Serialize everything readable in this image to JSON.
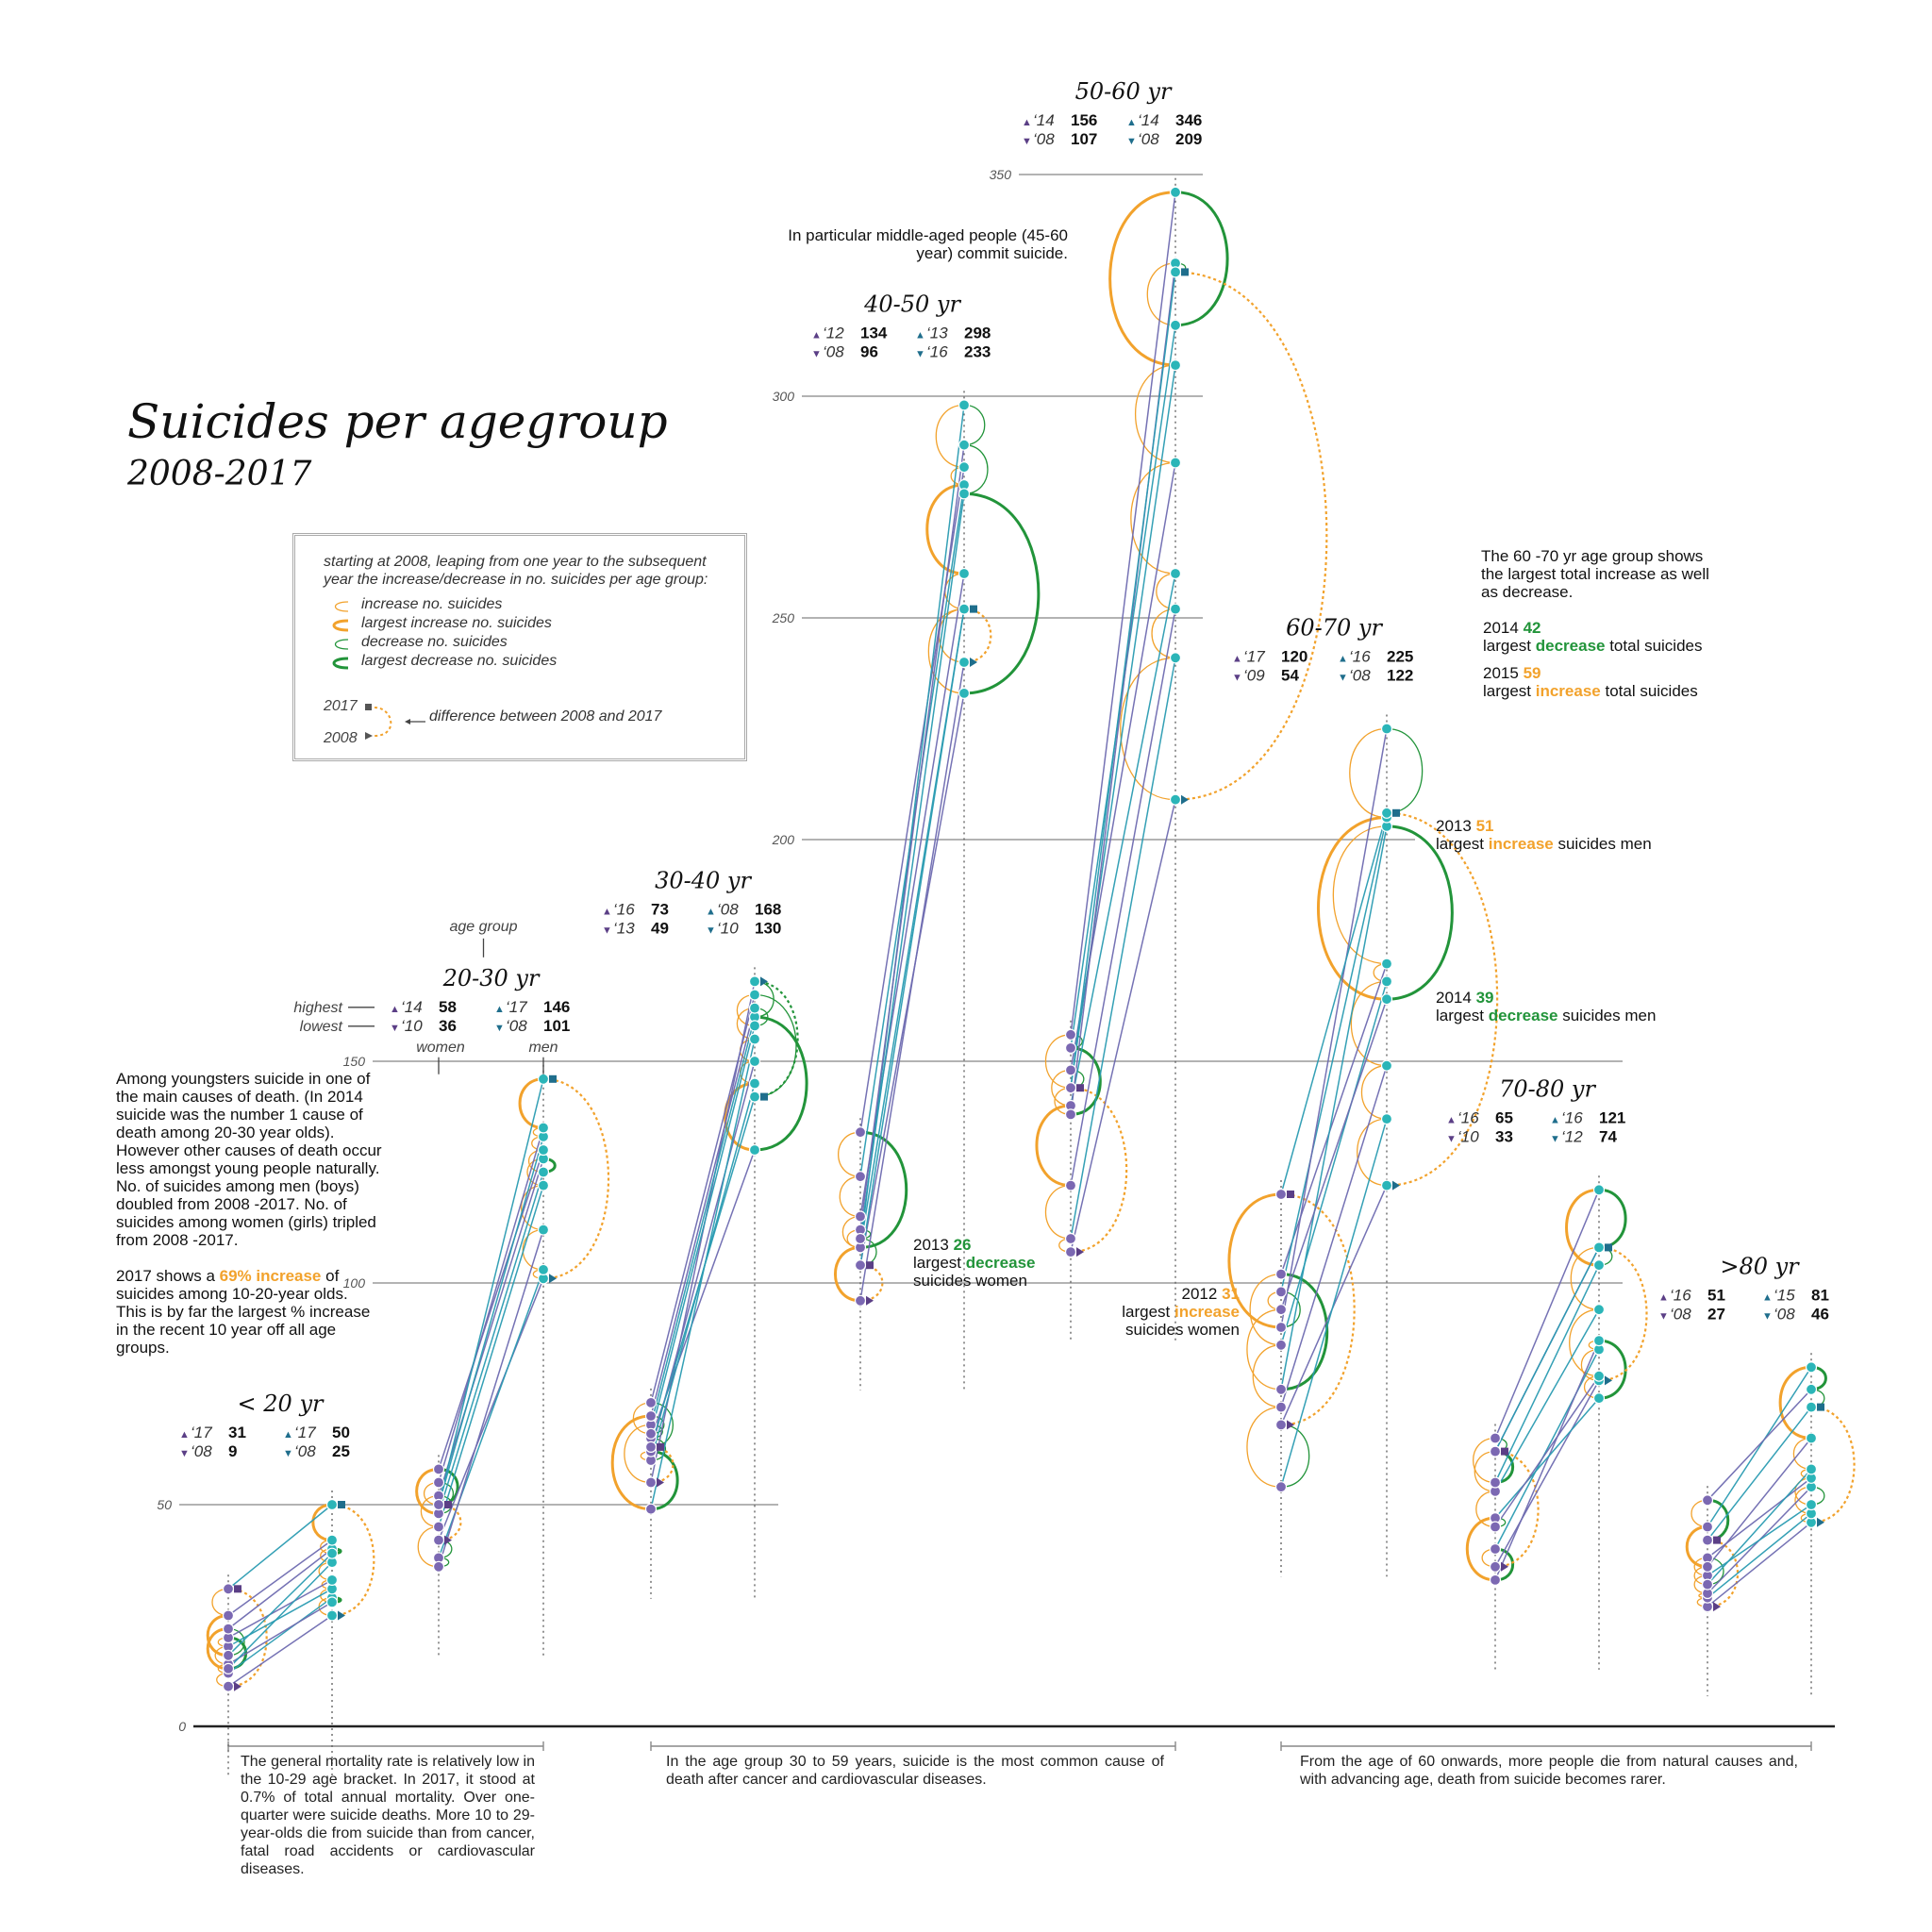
{
  "title": "Suicides per agegroup",
  "subtitle": "2008-2017",
  "legend": {
    "intro": "starting at 2008, leaping from one year to the subsequent year the increase/decrease in no. suicides per age group:",
    "items": [
      "increase no. suicides",
      "largest increase no. suicides",
      "decrease no. suicides",
      "largest decrease no. suicides"
    ],
    "year_2017": "2017",
    "year_2008": "2008",
    "difference": "difference between 2008 and 2017"
  },
  "colors": {
    "women": "#7b68b2",
    "men": "#2bb5b8",
    "men_dark": "#1f6e8c",
    "women_dark": "#5b3f86",
    "increase": "#f2a22c",
    "decrease": "#22943a",
    "axis": "#888888",
    "women_line": "#6e6bb0",
    "men_line": "#2a9bb2"
  },
  "helper": {
    "age_group": "age group",
    "highest": "highest",
    "lowest": "lowest",
    "women": "women",
    "men": "men"
  },
  "notes": {
    "middle_aged": "In particular middle-aged people (45-60 year) commit suicide.",
    "youngsters_1": "Among youngsters suicide in one of the main causes of death. (In 2014 suicide was the number 1 cause of death among 20-30 year olds). However other causes of death occur less amongst young people naturally. No. of suicides among men (boys) doubled from 2008 -2017. No. of suicides among women (girls) tripled from 2008 -2017.",
    "youngsters_2a": "2017 shows a ",
    "youngsters_2b": "69% increase",
    "youngsters_2c": " of suicides among 10-20-year olds. This is by far the largest % increase in the recent 10 year off all age groups.",
    "sixty_seventy": "The 60 -70 yr age group shows the largest total increase as well as decrease.",
    "ann_2014_total": {
      "year": "2014",
      "value": "42",
      "pre": "largest ",
      "word": "decrease",
      "post": " total suicides"
    },
    "ann_2015_total": {
      "year": "2015",
      "value": "59",
      "pre": "largest ",
      "word": "increase",
      "post": " total suicides"
    },
    "ann_2013_men": {
      "year": "2013",
      "value": "51",
      "pre": "largest ",
      "word": "increase",
      "post": " suicides men"
    },
    "ann_2014_men": {
      "year": "2014",
      "value": "39",
      "pre": "largest ",
      "word": "decrease",
      "post": " suicides men"
    },
    "ann_2013_women": {
      "year": "2013",
      "value": "26",
      "pre": "largest ",
      "word": "decrease",
      "post": "suicides women"
    },
    "ann_2012_women": {
      "year": "2012",
      "value": "31",
      "pre": "largest ",
      "word": "increase",
      "post": "suicides women"
    }
  },
  "footnotes": [
    "The general mortality rate is relatively low in the 10-29 age bracket. In 2017, it stood at 0.7% of total annual mortality. Over one-quarter were suicide deaths. More 10 to 29-year-olds die from suicide than from cancer, fatal road accidents or cardiovascular diseases.",
    "In the age group 30 to 59 years, suicide is the most common cause of death after cancer and cardiovascular diseases.",
    "From the age of 60 onwards, more people die from natural causes and, with advancing age, death from suicide becomes rarer."
  ],
  "chart_data": {
    "type": "scatter",
    "title": "Suicides per agegroup",
    "subtitle": "2008-2017",
    "y_ticks": [
      0,
      50,
      100,
      150,
      200,
      250,
      300,
      350
    ],
    "ylim": [
      0,
      350
    ],
    "years": [
      2008,
      2009,
      2010,
      2011,
      2012,
      2013,
      2014,
      2015,
      2016,
      2017
    ],
    "groups": [
      {
        "label": "< 20 yr",
        "women_stats": {
          "hi_year": "‘17",
          "hi": "31",
          "lo_year": "‘08",
          "lo": "9"
        },
        "men_stats": {
          "hi_year": "‘17",
          "hi": "50",
          "lo_year": "‘08",
          "lo": "25"
        },
        "women": [
          9,
          12,
          14,
          18,
          20,
          13,
          22,
          16,
          25,
          31
        ],
        "men": [
          25,
          29,
          28,
          31,
          33,
          37,
          40,
          39,
          42,
          50
        ]
      },
      {
        "label": "20-30 yr",
        "women_stats": {
          "hi_year": "‘14",
          "hi": "58",
          "lo_year": "‘10",
          "lo": "36"
        },
        "men_stats": {
          "hi_year": "‘17",
          "hi": "146",
          "lo_year": "‘08",
          "lo": "101"
        },
        "women": [
          42,
          38,
          36,
          45,
          52,
          48,
          58,
          50,
          55,
          50
        ],
        "men": [
          101,
          103,
          112,
          122,
          128,
          125,
          130,
          133,
          135,
          146
        ]
      },
      {
        "label": "30-40 yr",
        "women_stats": {
          "hi_year": "‘16",
          "hi": "73",
          "lo_year": "‘13",
          "lo": "49"
        },
        "men_stats": {
          "hi_year": "‘08",
          "hi": "168",
          "lo_year": "‘10",
          "lo": "130"
        },
        "women": [
          55,
          68,
          65,
          60,
          62,
          49,
          70,
          66,
          73,
          63
        ],
        "men": [
          168,
          160,
          130,
          145,
          150,
          155,
          162,
          158,
          165,
          142
        ]
      },
      {
        "label": "40-50 yr",
        "women_stats": {
          "hi_year": "‘12",
          "hi": "134",
          "lo_year": "‘08",
          "lo": "96"
        },
        "men_stats": {
          "hi_year": "‘13",
          "hi": "298",
          "lo_year": "‘16",
          "lo": "233"
        },
        "women": [
          96,
          108,
          115,
          124,
          134,
          108,
          112,
          110,
          104,
          104
        ],
        "men": [
          240,
          252,
          260,
          280,
          284,
          298,
          289,
          278,
          233,
          252
        ]
      },
      {
        "label": "50-60 yr",
        "women_stats": {
          "hi_year": "‘14",
          "hi": "156",
          "lo_year": "‘08",
          "lo": "107"
        },
        "men_stats": {
          "hi_year": "‘14",
          "hi": "346",
          "lo_year": "‘08",
          "lo": "209"
        },
        "women": [
          107,
          110,
          122,
          140,
          148,
          144,
          156,
          153,
          138,
          144
        ],
        "men": [
          209,
          241,
          252,
          260,
          285,
          307,
          346,
          316,
          330,
          328
        ]
      },
      {
        "label": "60-70 yr",
        "women_stats": {
          "hi_year": "‘17",
          "hi": "120",
          "lo_year": "‘09",
          "lo": "54"
        },
        "men_stats": {
          "hi_year": "‘16",
          "hi": "225",
          "lo_year": "‘08",
          "lo": "122"
        },
        "women": [
          68,
          54,
          72,
          86,
          102,
          76,
          94,
          98,
          90,
          120
        ],
        "men": [
          122,
          137,
          149,
          168,
          172,
          203,
          164,
          205,
          225,
          206
        ]
      },
      {
        "label": "70-80 yr",
        "women_stats": {
          "hi_year": "‘16",
          "hi": "65",
          "lo_year": "‘10",
          "lo": "33"
        },
        "men_stats": {
          "hi_year": "‘16",
          "hi": "121",
          "lo_year": "‘12",
          "lo": "74"
        },
        "women": [
          36,
          40,
          33,
          47,
          45,
          53,
          62,
          55,
          65,
          62
        ],
        "men": [
          78,
          85,
          87,
          74,
          79,
          94,
          108,
          104,
          121,
          108
        ]
      },
      {
        "label": ">80 yr",
        "women_stats": {
          "hi_year": "‘16",
          "hi": "51",
          "lo_year": "‘08",
          "lo": "27"
        },
        "men_stats": {
          "hi_year": "‘15",
          "hi": "81",
          "lo_year": "‘08",
          "lo": "46"
        },
        "women": [
          27,
          29,
          30,
          34,
          38,
          32,
          36,
          45,
          51,
          42
        ],
        "men": [
          46,
          48,
          54,
          50,
          56,
          58,
          65,
          81,
          76,
          72
        ]
      }
    ]
  }
}
